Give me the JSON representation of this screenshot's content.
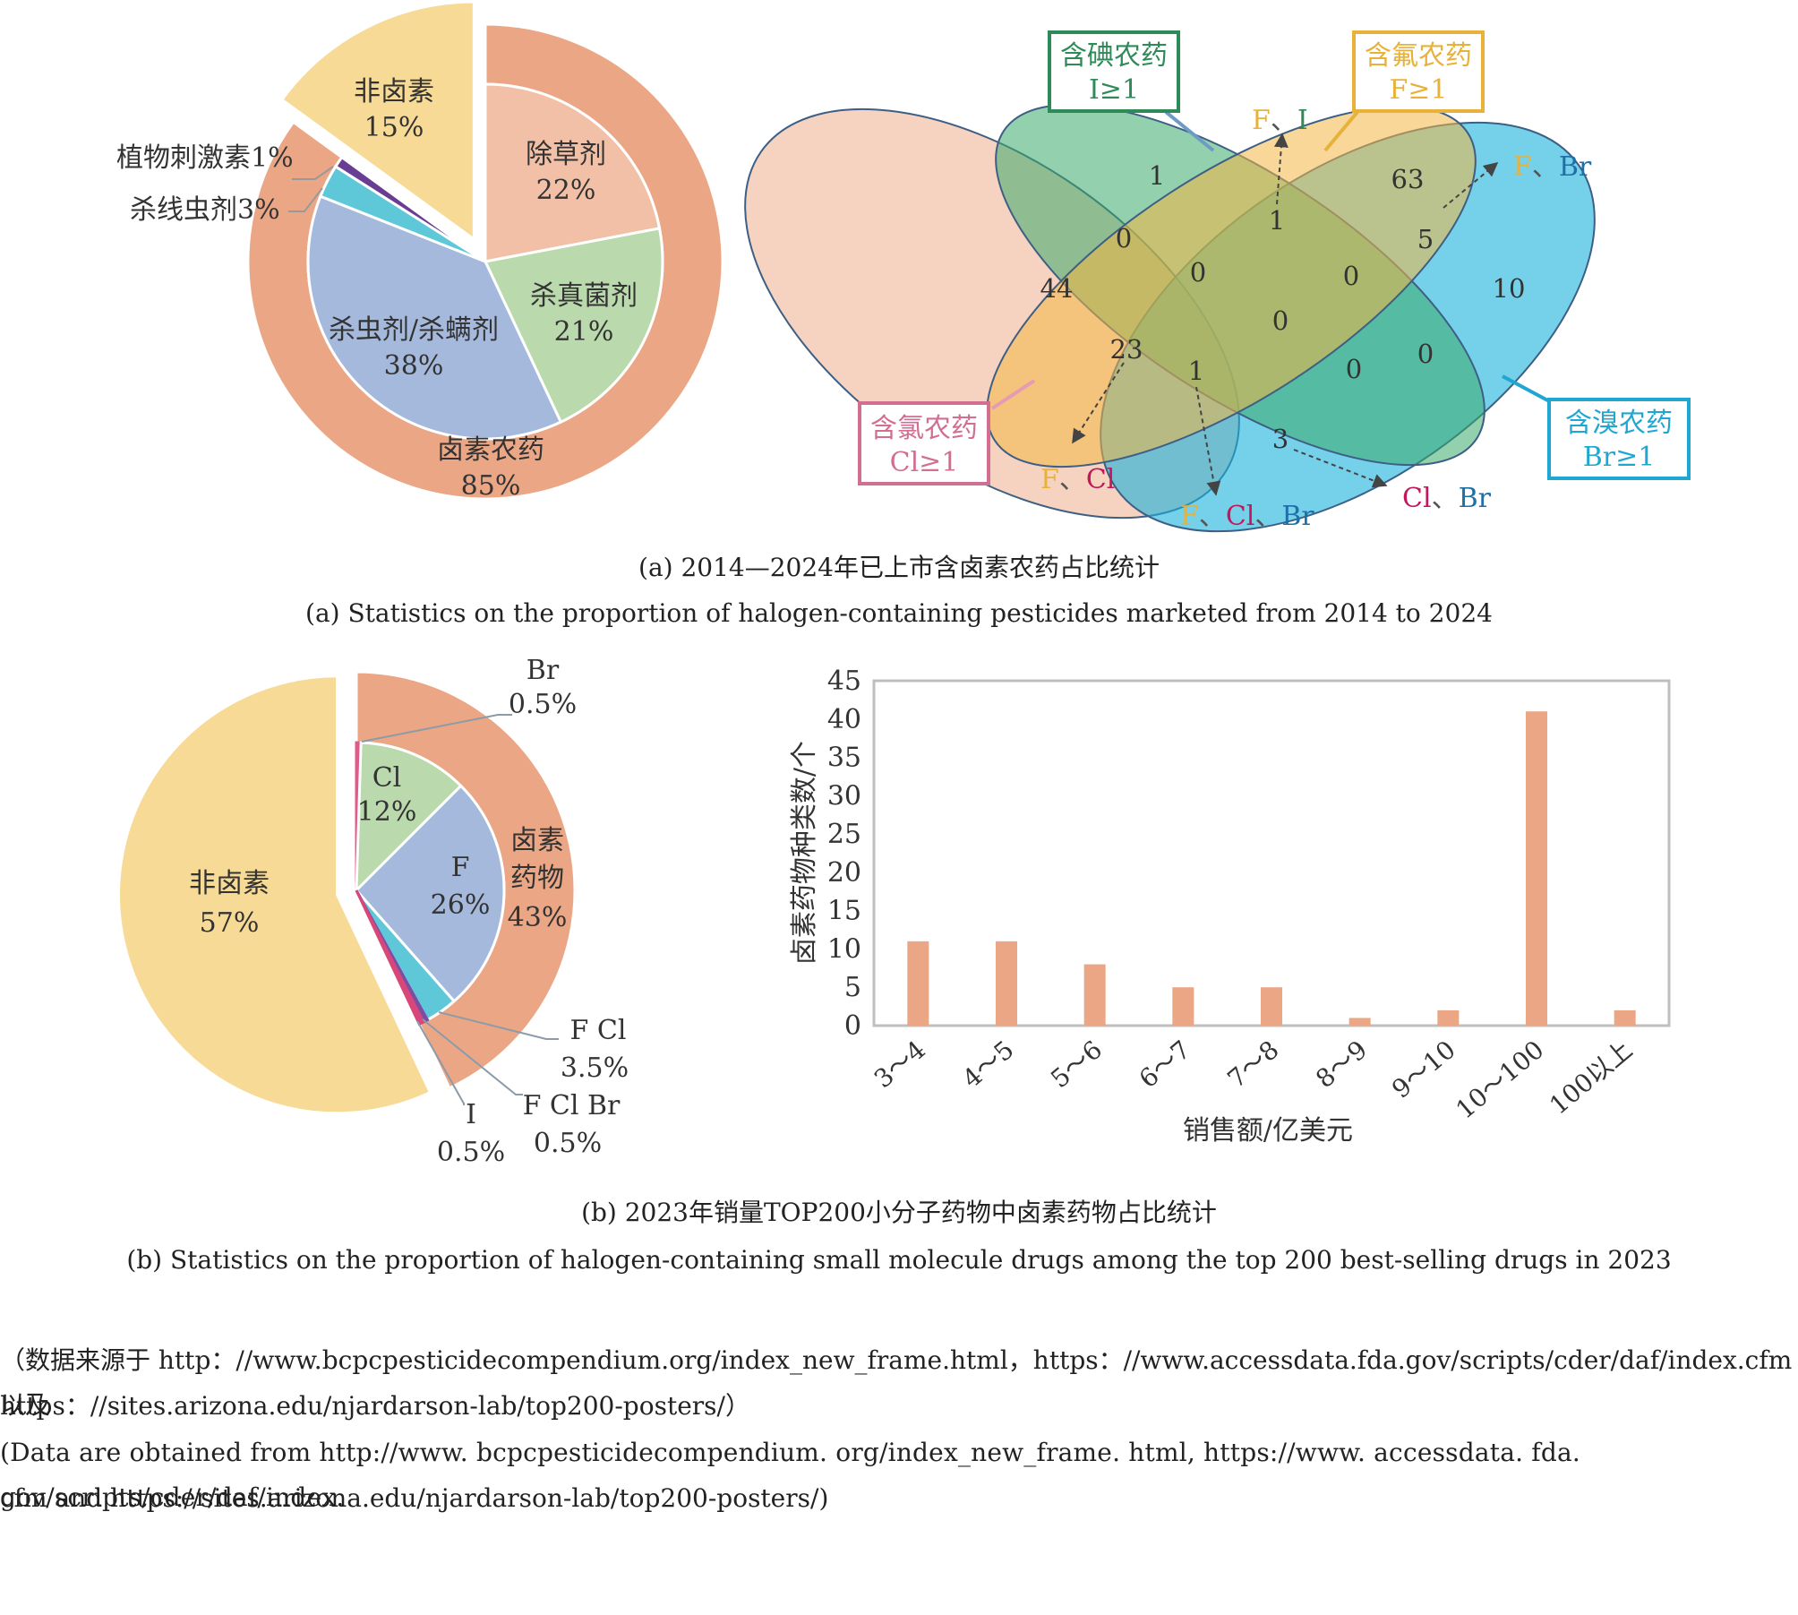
{
  "colors": {
    "outer_halogen": "#EBA785",
    "herbicide": "#F2C0A6",
    "fungicide": "#BAD9AC",
    "insecticide": "#A5B9DD",
    "nematicide": "#5FC8D8",
    "stimulant": "#6A3D94",
    "non_halogen": "#F7DA95",
    "iodine": "#2E8B57",
    "fluorine": "#E8B23A",
    "chlorine": "#D16E92",
    "bromine": "#1FA7D3"
  },
  "chart_data": [
    {
      "id": "pie_a",
      "type": "pie",
      "inner": [
        {
          "name": "除草剂",
          "percent": 22
        },
        {
          "name": "杀真菌剂",
          "percent": 21
        },
        {
          "name": "杀虫剂/杀螨剂",
          "percent": 38
        },
        {
          "name": "杀线虫剂",
          "percent": 3
        },
        {
          "name": "植物刺激素",
          "percent": 1
        }
      ],
      "outer": [
        {
          "name": "卤素农药",
          "percent": 85
        },
        {
          "name": "非卤素",
          "percent": 15
        }
      ],
      "labels": {
        "herbicide": [
          "除草剂",
          "22%"
        ],
        "fungicide": [
          "杀真菌剂",
          "21%"
        ],
        "insecticide": [
          "杀虫剂/杀螨剂",
          "38%"
        ],
        "halogen": [
          "卤素农药",
          "85%"
        ],
        "non_halogen": [
          "非卤素",
          "15%"
        ],
        "stimulant": "植物刺激素1%",
        "nematicide": "杀线虫剂3%"
      }
    },
    {
      "id": "venn_a",
      "type": "venn",
      "sets": {
        "I": [
          "含碘农药",
          "I≥1"
        ],
        "F": [
          "含氟农药",
          "F≥1"
        ],
        "Cl": [
          "含氯农药",
          "Cl≥1"
        ],
        "Br": [
          "含溴农药",
          "Br≥1"
        ]
      },
      "regions": {
        "I": "1",
        "F": "63",
        "Cl": "44",
        "Br": "10",
        "I_F": "1",
        "F_Br": "5",
        "I_Cl": "0",
        "I_F_Cl": "0",
        "I_F_Br": "0",
        "all": "0",
        "F_Cl": "23",
        "F_Cl_Br": "1",
        "I_Cl_Br": "0",
        "I_Br": "0",
        "Cl_Br": "3"
      },
      "callouts": {
        "fi": [
          "F",
          "、",
          "I"
        ],
        "fbr": [
          "F",
          "、",
          "Br"
        ],
        "fcl": [
          "F",
          "、",
          "Cl"
        ],
        "fclbr": [
          "F",
          "、",
          "Cl",
          "、",
          "Br"
        ],
        "clbr": [
          "Cl",
          "、",
          "Br"
        ]
      }
    },
    {
      "id": "pie_b",
      "type": "pie",
      "inner": [
        {
          "name": "Br",
          "percent": 0.5
        },
        {
          "name": "Cl",
          "percent": 12
        },
        {
          "name": "F",
          "percent": 26
        },
        {
          "name": "F Cl",
          "percent": 3.5
        },
        {
          "name": "F Cl Br",
          "percent": 0.5
        },
        {
          "name": "I",
          "percent": 0.5
        }
      ],
      "outer": [
        {
          "name": "卤素药物",
          "percent": 43
        },
        {
          "name": "非卤素",
          "percent": 57
        }
      ],
      "labels": {
        "br": [
          "Br",
          "0.5%"
        ],
        "cl": [
          "Cl",
          "12%"
        ],
        "f": [
          "F",
          "26%"
        ],
        "fcl": [
          "F Cl",
          "3.5%"
        ],
        "fclbr": [
          "F Cl Br",
          "0.5%"
        ],
        "i": [
          "I",
          "0.5%"
        ],
        "halogen": [
          "卤素",
          "药物",
          "43%"
        ],
        "non_halogen": [
          "非卤素",
          "57%"
        ]
      }
    },
    {
      "id": "bar_b",
      "type": "bar",
      "categories": [
        "3～4",
        "4～5",
        "5～6",
        "6～7",
        "7～8",
        "8～9",
        "9～10",
        "10～100",
        "100以上"
      ],
      "values": [
        11,
        11,
        8,
        5,
        5,
        1,
        2,
        41,
        2
      ],
      "ylim": [
        0,
        45
      ],
      "yticks": [
        "0",
        "5",
        "10",
        "15",
        "20",
        "25",
        "30",
        "35",
        "40",
        "45"
      ],
      "xlabel": "销售额/亿美元",
      "ylabel": "卤素药物种类数/个",
      "bar_color": "#EBA785"
    }
  ],
  "captions": {
    "a_cn": "(a) 2014—2024年已上市含卤素农药占比统计",
    "a_en": "(a) Statistics on the proportion of halogen-containing pesticides marketed from 2014 to 2024",
    "b_cn": "(b) 2023年销量TOP200小分子药物中卤素药物占比统计",
    "b_en": "(b) Statistics on the proportion of halogen-containing small molecule drugs among the top 200 best-selling drugs in 2023"
  },
  "source": {
    "cn_line1": "（数据来源于 http：//www.bcpcpesticidecompendium.org/index_new_frame.html，https：//www.accessdata.fda.gov/scripts/cder/daf/index.cfm 以及",
    "cn_line2": "https：//sites.arizona.edu/njardarson-lab/top200-posters/）",
    "en_line1": "(Data are obtained from http://www. bcpcpesticidecompendium. org/index_new_frame. html, https://www. accessdata. fda. gov/scripts/cder/daf/index.",
    "en_line2": "cfm and https://sites.arizona.edu/njardarson-lab/top200-posters/)"
  }
}
